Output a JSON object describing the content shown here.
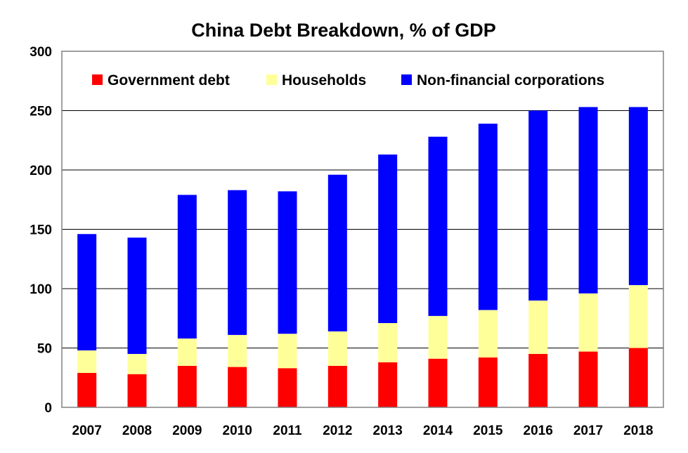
{
  "chart_data": {
    "type": "bar",
    "stacked": true,
    "title": "China Debt Breakdown, % of GDP",
    "xlabel": "",
    "ylabel": "",
    "ylim": [
      0,
      300
    ],
    "yticks": [
      "0",
      "50",
      "100",
      "150",
      "200",
      "250",
      "300"
    ],
    "grid": true,
    "legend_position": "top",
    "categories": [
      "2007",
      "2008",
      "2009",
      "2010",
      "2011",
      "2012",
      "2013",
      "2014",
      "2015",
      "2016",
      "2017",
      "2018"
    ],
    "series": [
      {
        "name": "Government debt",
        "color": "#ff0000",
        "values": [
          29,
          28,
          35,
          34,
          33,
          35,
          38,
          41,
          42,
          45,
          47,
          50
        ]
      },
      {
        "name": "Households",
        "color": "#ffff99",
        "values": [
          19,
          17,
          23,
          27,
          29,
          29,
          33,
          36,
          40,
          45,
          49,
          53
        ]
      },
      {
        "name": "Non-financial corporations",
        "color": "#0000ff",
        "values": [
          98,
          98,
          121,
          122,
          120,
          132,
          142,
          151,
          157,
          160,
          157,
          150
        ]
      }
    ]
  }
}
